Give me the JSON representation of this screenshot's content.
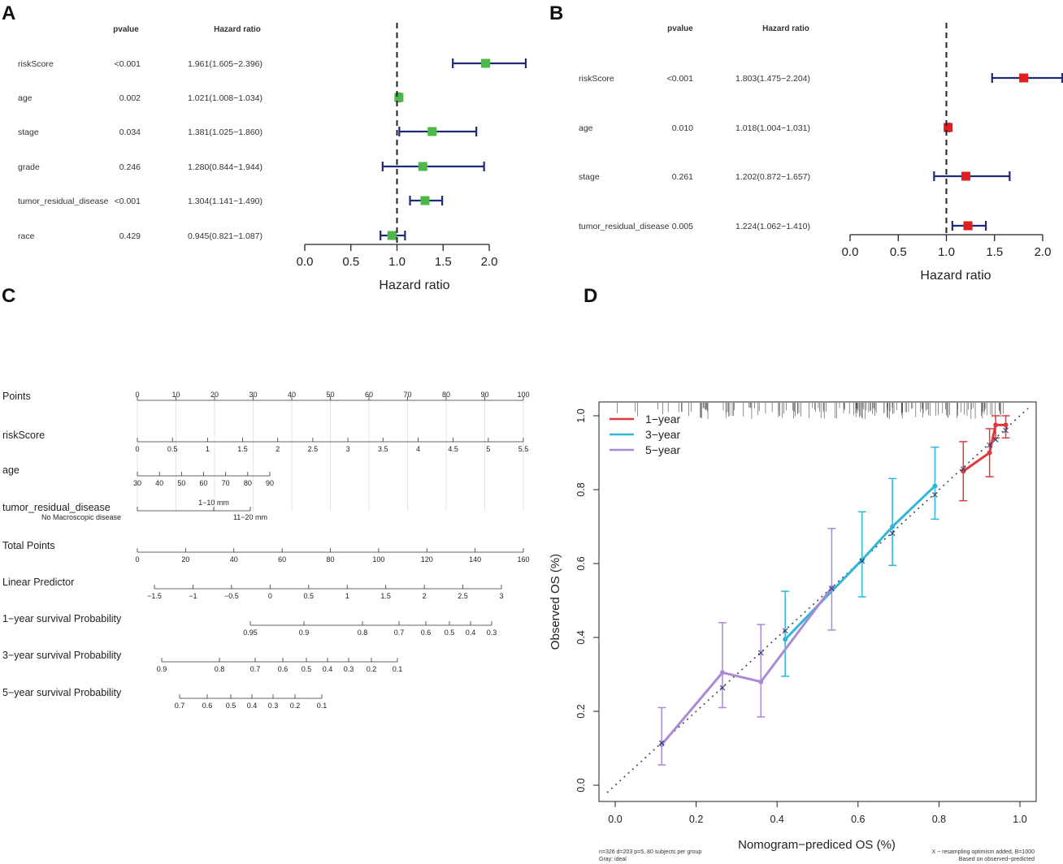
{
  "panel_labels": {
    "a": "A",
    "b": "B",
    "c": "C",
    "d": "D"
  },
  "forest_headers": {
    "pvalue": "pvalue",
    "hr": "Hazard ratio"
  },
  "chart_data": [
    {
      "type": "forest",
      "panel": "A",
      "xlabel": "Hazard ratio",
      "xlim": [
        0.0,
        2.0
      ],
      "xticks": [
        "0.0",
        "0.5",
        "1.0",
        "1.5",
        "2.0"
      ],
      "reference_line": 1.0,
      "marker_color": "#4cb848",
      "ci_color": "#1f2a78",
      "rows": [
        {
          "label": "riskScore",
          "pvalue": "<0.001",
          "hr_text": "1.961(1.605−2.396)",
          "hr": 1.961,
          "lo": 1.605,
          "hi": 2.396
        },
        {
          "label": "age",
          "pvalue": "0.002",
          "hr_text": "1.021(1.008−1.034)",
          "hr": 1.021,
          "lo": 1.008,
          "hi": 1.034
        },
        {
          "label": "stage",
          "pvalue": "0.034",
          "hr_text": "1.381(1.025−1.860)",
          "hr": 1.381,
          "lo": 1.025,
          "hi": 1.86
        },
        {
          "label": "grade",
          "pvalue": "0.246",
          "hr_text": "1.280(0.844−1.944)",
          "hr": 1.28,
          "lo": 0.844,
          "hi": 1.944
        },
        {
          "label": "tumor_residual_disease",
          "pvalue": "<0.001",
          "hr_text": "1.304(1.141−1.490)",
          "hr": 1.304,
          "lo": 1.141,
          "hi": 1.49
        },
        {
          "label": "race",
          "pvalue": "0.429",
          "hr_text": "0.945(0.821−1.087)",
          "hr": 0.945,
          "lo": 0.821,
          "hi": 1.087
        }
      ]
    },
    {
      "type": "forest",
      "panel": "B",
      "xlabel": "Hazard ratio",
      "xlim": [
        0.0,
        2.0
      ],
      "xticks": [
        "0.0",
        "0.5",
        "1.0",
        "1.5",
        "2.0"
      ],
      "reference_line": 1.0,
      "marker_color": "#e02020",
      "ci_color": "#1f2a78",
      "rows": [
        {
          "label": "riskScore",
          "pvalue": "<0.001",
          "hr_text": "1.803(1.475−2.204)",
          "hr": 1.803,
          "lo": 1.475,
          "hi": 2.204
        },
        {
          "label": "age",
          "pvalue": "0.010",
          "hr_text": "1.018(1.004−1.031)",
          "hr": 1.018,
          "lo": 1.004,
          "hi": 1.031
        },
        {
          "label": "stage",
          "pvalue": "0.261",
          "hr_text": "1.202(0.872−1.657)",
          "hr": 1.202,
          "lo": 0.872,
          "hi": 1.657
        },
        {
          "label": "tumor_residual_disease",
          "pvalue": "0.005",
          "hr_text": "1.224(1.062−1.410)",
          "hr": 1.224,
          "lo": 1.062,
          "hi": 1.41
        }
      ]
    },
    {
      "type": "nomogram",
      "panel": "C",
      "rows": [
        {
          "label": "Points",
          "ticks": [
            {
              "v": 0,
              "t": "0"
            },
            {
              "v": 10,
              "t": "10"
            },
            {
              "v": 20,
              "t": "20"
            },
            {
              "v": 30,
              "t": "30"
            },
            {
              "v": 40,
              "t": "40"
            },
            {
              "v": 50,
              "t": "50"
            },
            {
              "v": 60,
              "t": "60"
            },
            {
              "v": 70,
              "t": "70"
            },
            {
              "v": 80,
              "t": "80"
            },
            {
              "v": 90,
              "t": "90"
            },
            {
              "v": 100,
              "t": "100"
            }
          ]
        },
        {
          "label": "riskScore",
          "ticks": [
            {
              "v": 0,
              "t": "0"
            },
            {
              "v": 0.5,
              "t": "0.5"
            },
            {
              "v": 1,
              "t": "1"
            },
            {
              "v": 1.5,
              "t": "1.5"
            },
            {
              "v": 2,
              "t": "2"
            },
            {
              "v": 2.5,
              "t": "2.5"
            },
            {
              "v": 3,
              "t": "3"
            },
            {
              "v": 3.5,
              "t": "3.5"
            },
            {
              "v": 4,
              "t": "4"
            },
            {
              "v": 4.5,
              "t": "4.5"
            },
            {
              "v": 5,
              "t": "5"
            },
            {
              "v": 5.5,
              "t": "5.5"
            }
          ]
        },
        {
          "label": "age",
          "ticks": [
            {
              "v": 30,
              "t": "30"
            },
            {
              "v": 40,
              "t": "40"
            },
            {
              "v": 50,
              "t": "50"
            },
            {
              "v": 60,
              "t": "60"
            },
            {
              "v": 70,
              "t": "70"
            },
            {
              "v": 80,
              "t": "80"
            },
            {
              "v": 90,
              "t": "90"
            }
          ]
        },
        {
          "label": "tumor_residual_disease",
          "ticks": [
            {
              "t": "No Macroscopic disease"
            },
            {
              "t": "1−10 mm"
            },
            {
              "t": "11−20 mm"
            }
          ]
        },
        {
          "label": "Total Points",
          "ticks": [
            {
              "v": 0,
              "t": "0"
            },
            {
              "v": 20,
              "t": "20"
            },
            {
              "v": 40,
              "t": "40"
            },
            {
              "v": 60,
              "t": "60"
            },
            {
              "v": 80,
              "t": "80"
            },
            {
              "v": 100,
              "t": "100"
            },
            {
              "v": 120,
              "t": "120"
            },
            {
              "v": 140,
              "t": "140"
            },
            {
              "v": 160,
              "t": "160"
            }
          ]
        },
        {
          "label": "Linear Predictor",
          "ticks": [
            {
              "v": -1.5,
              "t": "−1.5"
            },
            {
              "v": -1,
              "t": "−1"
            },
            {
              "v": -0.5,
              "t": "−0.5"
            },
            {
              "v": 0,
              "t": "0"
            },
            {
              "v": 0.5,
              "t": "0.5"
            },
            {
              "v": 1,
              "t": "1"
            },
            {
              "v": 1.5,
              "t": "1.5"
            },
            {
              "v": 2,
              "t": "2"
            },
            {
              "v": 2.5,
              "t": "2.5"
            },
            {
              "v": 3,
              "t": "3"
            }
          ]
        },
        {
          "label": "1−year survival Probability",
          "ticks": [
            {
              "t": "0.95"
            },
            {
              "t": "0.9"
            },
            {
              "t": "0.8"
            },
            {
              "t": "0.7"
            },
            {
              "t": "0.6"
            },
            {
              "t": "0.5"
            },
            {
              "t": "0.4"
            },
            {
              "t": "0.3"
            }
          ]
        },
        {
          "label": "3−year survival Probability",
          "ticks": [
            {
              "t": "0.9"
            },
            {
              "t": "0.8"
            },
            {
              "t": "0.7"
            },
            {
              "t": "0.6"
            },
            {
              "t": "0.5"
            },
            {
              "t": "0.4"
            },
            {
              "t": "0.3"
            },
            {
              "t": "0.2"
            },
            {
              "t": "0.1"
            }
          ]
        },
        {
          "label": "5−year survival Probability",
          "ticks": [
            {
              "t": "0.7"
            },
            {
              "t": "0.6"
            },
            {
              "t": "0.5"
            },
            {
              "t": "0.4"
            },
            {
              "t": "0.3"
            },
            {
              "t": "0.2"
            },
            {
              "t": "0.1"
            }
          ]
        }
      ]
    },
    {
      "type": "line",
      "panel": "D",
      "title": "",
      "xlabel": "Nomogram−prediced OS (%)",
      "ylabel": "Observed OS (%)",
      "xlim": [
        0.0,
        1.0
      ],
      "ylim": [
        0.0,
        1.0
      ],
      "xticks": [
        "0.0",
        "0.2",
        "0.4",
        "0.6",
        "0.8",
        "1.0"
      ],
      "yticks": [
        "0.0",
        "0.2",
        "0.4",
        "0.6",
        "0.8",
        "1.0"
      ],
      "reference": "diagonal dotted line (ideal)",
      "legend": {
        "position": "top-left"
      },
      "series": [
        {
          "name": "1−year",
          "color": "#e03a3e",
          "points": [
            {
              "x": 0.86,
              "y": 0.85,
              "lo": 0.77,
              "hi": 0.93
            },
            {
              "x": 0.925,
              "y": 0.9,
              "lo": 0.835,
              "hi": 0.965
            },
            {
              "x": 0.94,
              "y": 0.975,
              "lo": 0.94,
              "hi": 1.0
            },
            {
              "x": 0.965,
              "y": 0.975,
              "lo": 0.94,
              "hi": 1.0
            }
          ]
        },
        {
          "name": "3−year",
          "color": "#2fb6d8",
          "points": [
            {
              "x": 0.42,
              "y": 0.395,
              "lo": 0.295,
              "hi": 0.525
            },
            {
              "x": 0.61,
              "y": 0.61,
              "lo": 0.51,
              "hi": 0.74
            },
            {
              "x": 0.685,
              "y": 0.7,
              "lo": 0.595,
              "hi": 0.83
            },
            {
              "x": 0.79,
              "y": 0.81,
              "lo": 0.72,
              "hi": 0.915
            }
          ]
        },
        {
          "name": "5−year",
          "color": "#a98ad6",
          "points": [
            {
              "x": 0.115,
              "y": 0.11,
              "lo": 0.055,
              "hi": 0.21
            },
            {
              "x": 0.265,
              "y": 0.305,
              "lo": 0.21,
              "hi": 0.44
            },
            {
              "x": 0.36,
              "y": 0.28,
              "lo": 0.185,
              "hi": 0.435
            },
            {
              "x": 0.535,
              "y": 0.535,
              "lo": 0.42,
              "hi": 0.695
            }
          ]
        }
      ],
      "footnotes": {
        "left1": "n=326 d=203 p=5, 80 subjects per group",
        "left2": "Gray: ideal",
        "right1": "X − resampling optimism added, B=1000",
        "right2": "Based on observed−predicted"
      }
    }
  ]
}
